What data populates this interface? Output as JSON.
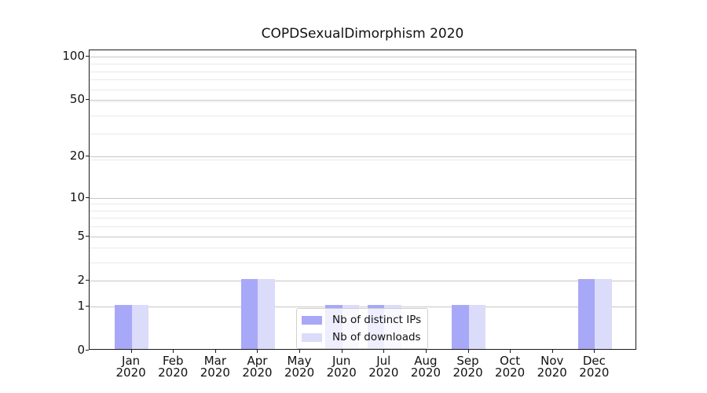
{
  "chart_data": {
    "type": "bar",
    "title": "COPDSexualDimorphism 2020",
    "categories": [
      "Jan 2020",
      "Feb 2020",
      "Mar 2020",
      "Apr 2020",
      "May 2020",
      "Jun 2020",
      "Jul 2020",
      "Aug 2020",
      "Sep 2020",
      "Oct 2020",
      "Nov 2020",
      "Dec 2020"
    ],
    "x_months": [
      "Jan",
      "Feb",
      "Mar",
      "Apr",
      "May",
      "Jun",
      "Jul",
      "Aug",
      "Sep",
      "Oct",
      "Nov",
      "Dec"
    ],
    "x_year": "2020",
    "series": [
      {
        "name": "Nb of distinct IPs",
        "color": "#a8a8f8",
        "values": [
          1,
          0,
          0,
          2,
          0,
          1,
          1,
          0,
          1,
          0,
          0,
          2
        ]
      },
      {
        "name": "Nb of downloads",
        "color": "#dbdbfa",
        "values": [
          1,
          0,
          0,
          2,
          0,
          1,
          1,
          0,
          1,
          0,
          0,
          2
        ]
      }
    ],
    "yscale": "log1p",
    "yticks": [
      0,
      1,
      2,
      5,
      10,
      20,
      50,
      100
    ],
    "ylim": [
      0,
      110
    ],
    "xlabel": "",
    "ylabel": "",
    "grid": "horizontal major and minor gridlines",
    "legend_position": "lower center"
  },
  "colors": {
    "major_grid": "#c6c6c6",
    "minor_grid": "#e9e9e9",
    "spine": "#1a1a1a"
  }
}
